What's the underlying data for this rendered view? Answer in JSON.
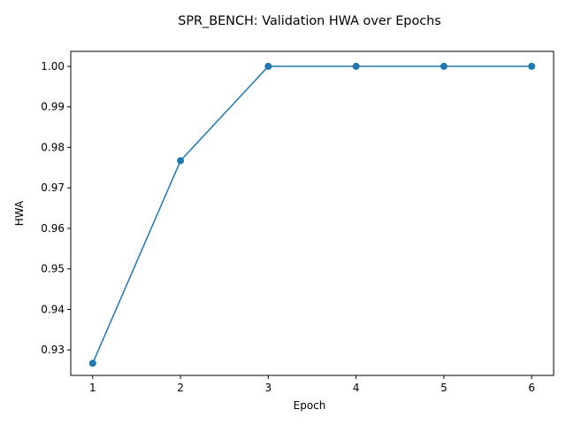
{
  "chart_data": {
    "type": "line",
    "title": "SPR_BENCH: Validation HWA over Epochs",
    "xlabel": "Epoch",
    "ylabel": "HWA",
    "x": [
      1,
      2,
      3,
      4,
      5,
      6
    ],
    "series": [
      {
        "values": [
          0.9267,
          0.9767,
          1.0,
          1.0,
          1.0,
          1.0
        ],
        "color": "#1f77b4",
        "marker": "circle"
      }
    ],
    "xlim": [
      0.75,
      6.25
    ],
    "ylim": [
      0.9237,
      1.0037
    ],
    "xticks": [
      1,
      2,
      3,
      4,
      5,
      6
    ],
    "xtick_labels": [
      "1",
      "2",
      "3",
      "4",
      "5",
      "6"
    ],
    "yticks": [
      0.93,
      0.94,
      0.95,
      0.96,
      0.97,
      0.98,
      0.99,
      1.0
    ],
    "ytick_labels": [
      "0.93",
      "0.94",
      "0.95",
      "0.96",
      "0.97",
      "0.98",
      "0.99",
      "1.00"
    ],
    "grid": false,
    "legend": "none"
  }
}
